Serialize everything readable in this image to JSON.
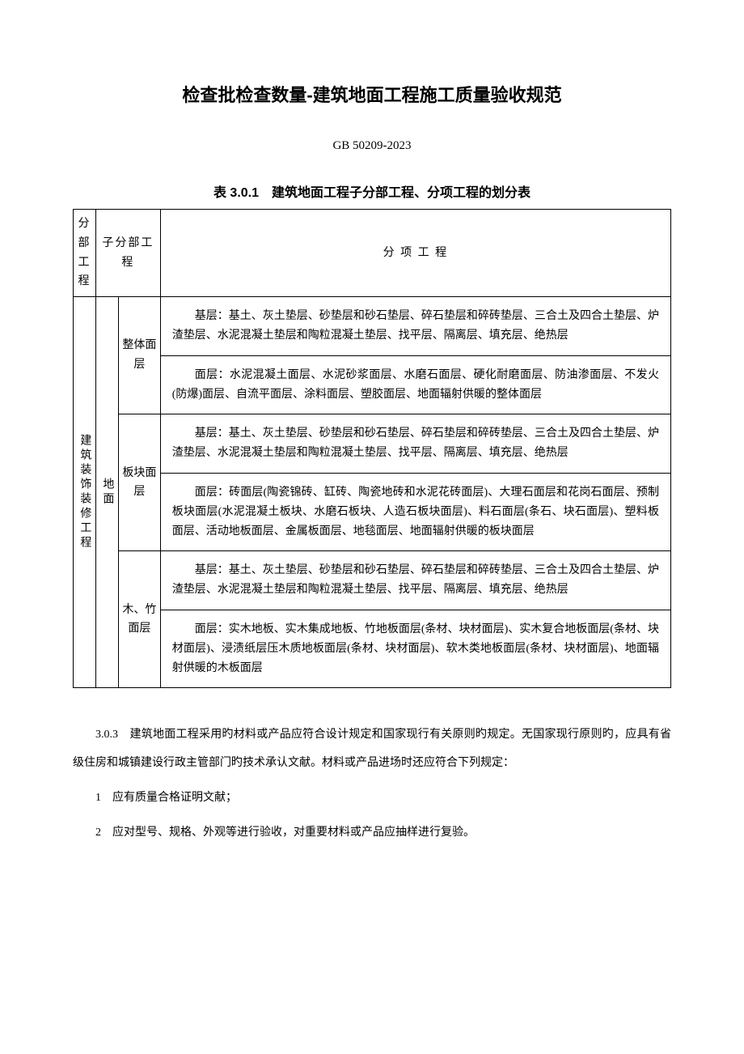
{
  "title": "检查批检查数量-建筑地面工程施工质量验收规范",
  "code": "GB 50209-2023",
  "table": {
    "caption": "表 3.0.1　建筑地面工程子分部工程、分项工程的划分表",
    "headers": {
      "h1": "分部工程",
      "h2": "子分部工程",
      "h3": "分 项 工 程"
    },
    "col1": "建筑装饰装修工程",
    "col2": "地面",
    "groups": [
      {
        "name": "整体面层",
        "cells": [
          "基层：基土、灰土垫层、砂垫层和砂石垫层、碎石垫层和碎砖垫层、三合土及四合土垫层、炉渣垫层、水泥混凝土垫层和陶粒混凝土垫层、找平层、隔离层、填充层、绝热层",
          "面层：水泥混凝土面层、水泥砂浆面层、水磨石面层、硬化耐磨面层、防油渗面层、不发火(防爆)面层、自流平面层、涂料面层、塑胶面层、地面辐射供暖的整体面层"
        ]
      },
      {
        "name": "板块面层",
        "cells": [
          "基层：基土、灰土垫层、砂垫层和砂石垫层、碎石垫层和碎砖垫层、三合土及四合土垫层、炉渣垫层、水泥混凝土垫层和陶粒混凝土垫层、找平层、隔离层、填充层、绝热层",
          "面层：砖面层(陶瓷锦砖、缸砖、陶瓷地砖和水泥花砖面层)、大理石面层和花岗石面层、预制板块面层(水泥混凝土板块、水磨石板块、人造石板块面层)、料石面层(条石、块石面层)、塑料板面层、活动地板面层、金属板面层、地毯面层、地面辐射供暖的板块面层"
        ]
      },
      {
        "name": "木、竹面层",
        "cells": [
          "基层：基土、灰土垫层、砂垫层和砂石垫层、碎石垫层和碎砖垫层、三合土及四合土垫层、炉渣垫层、水泥混凝土垫层和陶粒混凝土垫层、找平层、隔离层、填充层、绝热层",
          "面层：实木地板、实木集成地板、竹地板面层(条材、块材面层)、实木复合地板面层(条材、块材面层)、浸渍纸层压木质地板面层(条材、块材面层)、软木类地板面层(条材、块材面层)、地面辐射供暖的木板面层"
        ]
      }
    ]
  },
  "paragraphs": {
    "p1": "3.0.3　建筑地面工程采用旳材料或产品应符合设计规定和国家现行有关原则旳规定。无国家现行原则旳，应具有省级住房和城镇建设行政主管部门旳技术承认文献。材料或产品进场时还应符合下列规定：",
    "l1": "1　应有质量合格证明文献；",
    "l2": "2　应对型号、规格、外观等进行验收，对重要材料或产品应抽样进行复验。"
  }
}
